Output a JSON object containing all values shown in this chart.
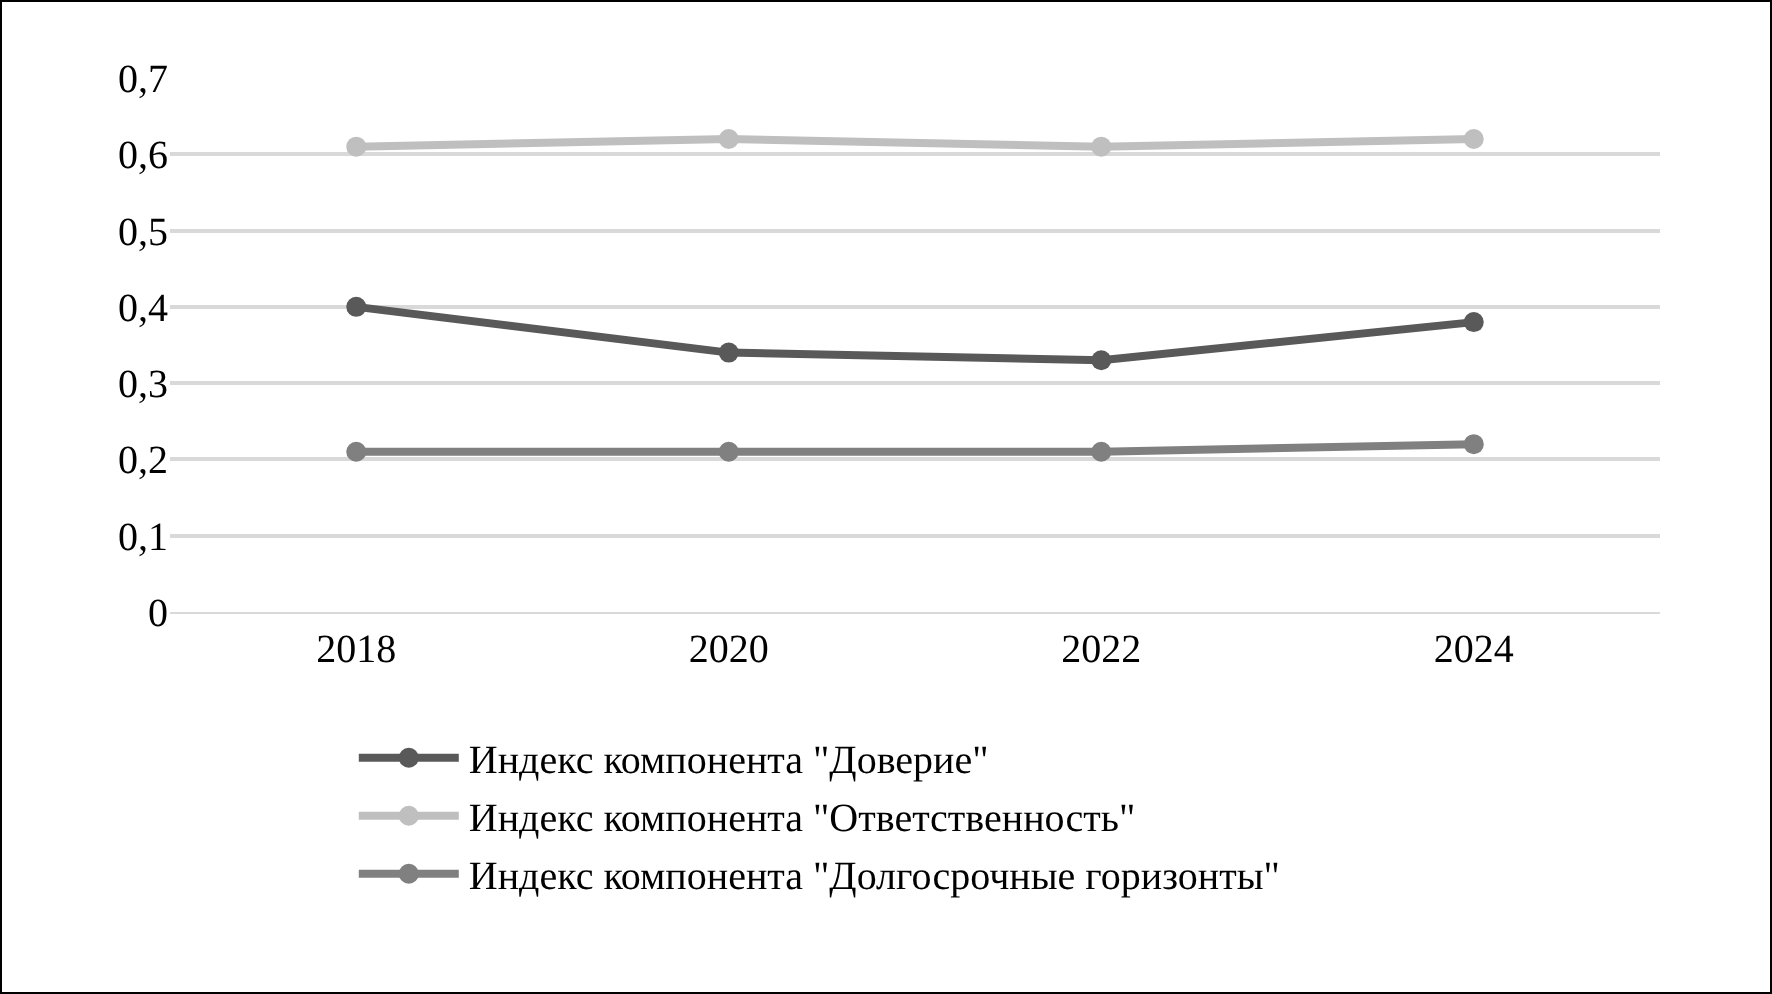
{
  "chart_data": {
    "type": "line",
    "categories": [
      "2018",
      "2020",
      "2022",
      "2024"
    ],
    "series": [
      {
        "name": "Индекс компонента \"Доверие\"",
        "color": "#595959",
        "values": [
          0.4,
          0.34,
          0.33,
          0.38
        ]
      },
      {
        "name": "Индекс компонента \"Ответственность\"",
        "color": "#bfbfbf",
        "values": [
          0.61,
          0.62,
          0.61,
          0.62
        ]
      },
      {
        "name": "Индекс компонента \"Долгосрочные горизонты\"",
        "color": "#808080",
        "values": [
          0.21,
          0.21,
          0.21,
          0.22
        ]
      }
    ],
    "ylim": [
      0,
      0.7
    ],
    "yticks": [
      {
        "value": 0,
        "label": "0"
      },
      {
        "value": 0.1,
        "label": "0,1"
      },
      {
        "value": 0.2,
        "label": "0,2"
      },
      {
        "value": 0.3,
        "label": "0,3"
      },
      {
        "value": 0.4,
        "label": "0,4"
      },
      {
        "value": 0.5,
        "label": "0,5"
      },
      {
        "value": 0.6,
        "label": "0,6"
      },
      {
        "value": 0.7,
        "label": "0,7"
      }
    ],
    "grid": "y",
    "legend": "bottom",
    "marker": "circle",
    "line_style": "solid"
  }
}
